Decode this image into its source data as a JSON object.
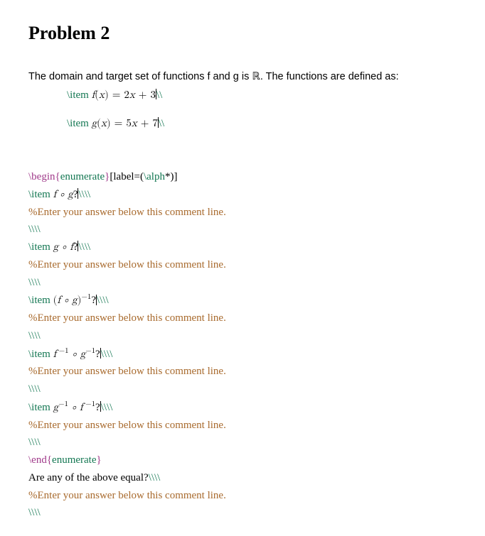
{
  "title": "Problem 2",
  "intro_prefix": "The domain and target set of functions f and g is ",
  "intro_real": "ℝ",
  "intro_suffix": ". The functions are defined as:",
  "defs": {
    "f_cmd": "\\item ",
    "f_math": "f(x) = 2x + 3",
    "g_cmd": "\\item ",
    "g_math": "g(x) = 5x + 7",
    "trail": "\\\\"
  },
  "block": {
    "begin_cmd": "\\begin",
    "begin_arg": "enumerate",
    "begin_opt_open": "[label=(",
    "begin_opt_cmd": "\\alph",
    "begin_opt_close": "*)]",
    "end_cmd": "\\end",
    "end_arg": "enumerate",
    "comment": "%Enter your answer below this comment line.",
    "blank": "\\\\\\\\",
    "item_cmd": "\\item ",
    "items": [
      {
        "math_html": "<span class='math'>f ∘ g</span>?"
      },
      {
        "math_html": "<span class='math'>g ∘ f</span>?"
      },
      {
        "math_html": "<span class='math'><span class='rm'>(</span>f ∘ g<span class='rm'>)</span><span class='sup'>−1</span></span>?"
      },
      {
        "math_html": "<span class='math'>f<span class='sup'> −1</span> ∘ g<span class='sup'>−1</span></span>?"
      },
      {
        "math_html": "<span class='math'>g<span class='sup'>−1</span> ∘ f<span class='sup'> −1</span></span>?"
      }
    ],
    "final_q": "Are any of the above equal?",
    "final_trail": "\\\\\\\\"
  },
  "colors": {
    "cmd": "#137752",
    "kw": "#a03a8a",
    "comment": "#a86a2d",
    "text": "#000000",
    "bg": "#ffffff"
  },
  "fonts": {
    "title": "Georgia serif bold 26pt",
    "body": "Arial 14.5pt",
    "code": "serif 15pt",
    "math": "Latin Modern / Cambria Math italic"
  }
}
